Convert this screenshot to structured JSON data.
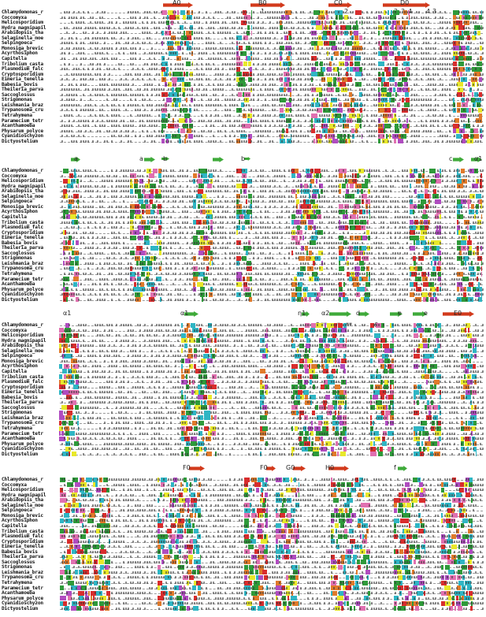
{
  "species": [
    "Chlamydomonas_r",
    "Coccomyxa",
    "Helicosporidium",
    "Hydra_magnipapil",
    "Arabidopsis_tha",
    "Selaginella_moe",
    "Selpingoeca",
    "Monosiga_brevic",
    "Acyrthosiphon",
    "Capitella",
    "Tribolium_casta",
    "Plasmodium_falc",
    "Cryptosporidium",
    "Eimeria_tenella",
    "Babesia_bovis",
    "Theileria_parva",
    "Saccoglossus",
    "Strigomonas",
    "Leishmania_braz",
    "Trypanosoma_cru",
    "Tetrahymena",
    "Paramecium_tetr",
    "Acanthamoeba",
    "Physarum_polyce",
    "Cyanidioschyzon",
    "Dictyostelium"
  ],
  "blocks": [
    {
      "labels": [
        "A0",
        "B0",
        "C0",
        "D0"
      ],
      "numbers": [
        "1",
        "2",
        "2",
        "3",
        "4",
        "4",
        "3"
      ]
    },
    {
      "labels": [
        "a",
        "a",
        "b",
        "b",
        "c",
        "α1"
      ],
      "numbers": []
    },
    {
      "labels": [
        "α1",
        "α1",
        "η1",
        "α2",
        "d",
        "e",
        "e",
        "E0"
      ],
      "numbers": [
        "5",
        "**",
        "*",
        "**",
        "6"
      ]
    },
    {
      "labels": [
        "F0",
        "F0",
        "G0",
        "H0",
        "f"
      ],
      "numbers": []
    }
  ],
  "colors": {
    "arrow_red": "#d23a1c",
    "arrow_green": "#3faa3a",
    "res_cyan": "#2fb5c4",
    "res_green": "#2e9a3a",
    "res_yellow": "#e8e82a",
    "res_magenta": "#b04cc0",
    "res_orange": "#e07a2a",
    "res_red": "#d82d2d",
    "res_pink": "#e070b0"
  }
}
